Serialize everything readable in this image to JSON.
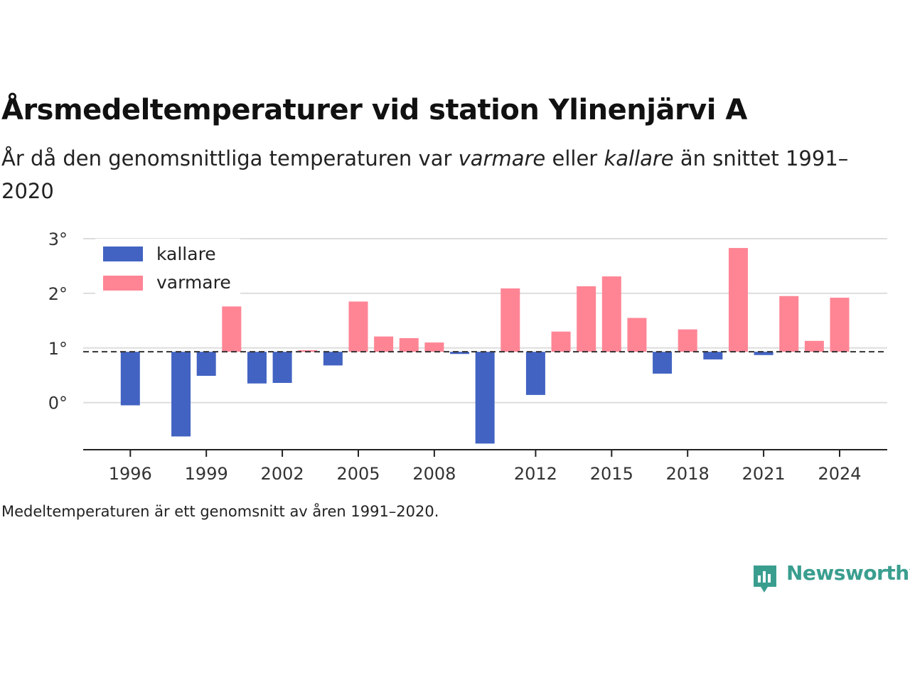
{
  "header": {
    "title": "Årsmedeltemperaturer vid station Ylinenjärvi A",
    "subtitle_part1": "År då den genomsnittliga temperaturen var ",
    "subtitle_warm": "varmare",
    "subtitle_part2": " eller ",
    "subtitle_cold": "kallare",
    "subtitle_part3": " än snittet 1991–2020"
  },
  "footnote": "Medeltemperaturen är ett genomsnitt av åren 1991–2020.",
  "brand": {
    "name": "Newsworthy",
    "icon": "newsworthy-logo-icon"
  },
  "colors": {
    "cold": "#4263c2",
    "warm": "#ff8595",
    "grid": "#dddddd",
    "axis": "#222222",
    "brand": "#3a9e8f"
  },
  "chart_data": {
    "type": "bar",
    "baseline": 0.93,
    "baseline_style": "dashed",
    "ylim": [
      -0.9,
      3.0
    ],
    "yticks": [
      0,
      1,
      2,
      3
    ],
    "ytick_labels": [
      "0°",
      "1°",
      "2°",
      "3°"
    ],
    "xticks": [
      1996,
      1999,
      2002,
      2005,
      2008,
      2012,
      2015,
      2018,
      2021,
      2024
    ],
    "xtick_labels": [
      "1996",
      "1999",
      "2002",
      "2005",
      "2008",
      "2012",
      "2015",
      "2018",
      "2021",
      "2024"
    ],
    "legend": {
      "position": "top-left",
      "entries": [
        {
          "name": "kallare",
          "color_key": "cold"
        },
        {
          "name": "varmare",
          "color_key": "warm"
        }
      ]
    },
    "grid": true,
    "x": [
      1996,
      1998,
      1999,
      2000,
      2001,
      2002,
      2003,
      2004,
      2005,
      2006,
      2007,
      2008,
      2009,
      2010,
      2011,
      2012,
      2013,
      2014,
      2015,
      2016,
      2017,
      2018,
      2019,
      2020,
      2021,
      2022,
      2023,
      2024
    ],
    "values": [
      -0.05,
      -0.62,
      0.49,
      1.76,
      0.35,
      0.36,
      0.96,
      0.68,
      1.85,
      1.21,
      1.18,
      1.1,
      0.89,
      -0.75,
      2.09,
      0.14,
      1.3,
      2.13,
      2.31,
      1.55,
      0.53,
      1.34,
      0.79,
      2.83,
      0.87,
      1.95,
      1.13,
      1.92
    ]
  }
}
